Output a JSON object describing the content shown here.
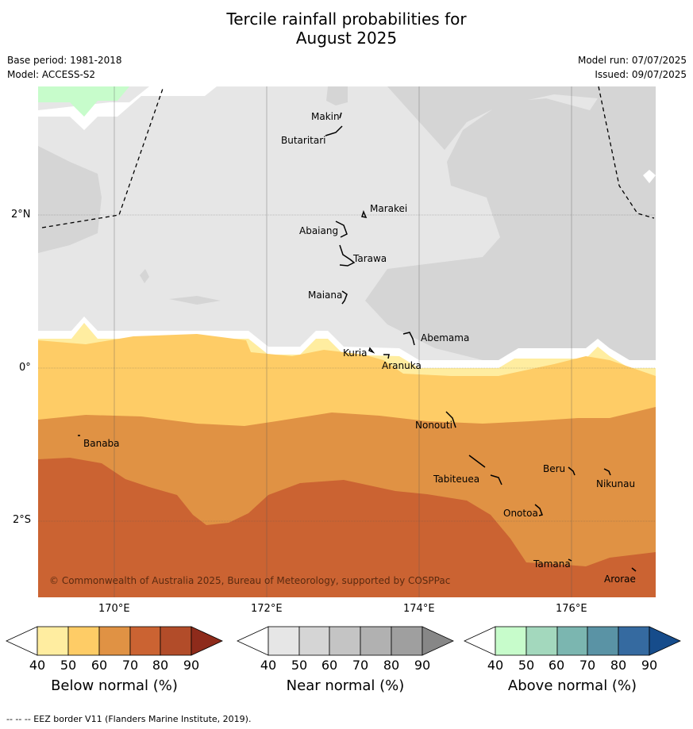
{
  "title_line1": "Tercile rainfall probabilities for",
  "title_line2": "August 2025",
  "meta_left": [
    "Base period: 1981-2018",
    "Model: ACCESS-S2"
  ],
  "meta_right": [
    "Model run: 07/07/2025",
    "Issued: 09/07/2025"
  ],
  "x_ticks": [
    "170°E",
    "172°E",
    "174°E",
    "176°E"
  ],
  "y_ticks": [
    "2°N",
    "0°",
    "2°S"
  ],
  "copyright": "© Commonwealth of Australia 2025, Bureau of Meteorology, supported by COSPPac",
  "footer": "--  --  -- EEZ border V11 (Flanders Marine Institute, 2019).",
  "islands": [
    "Makin",
    "Butaritari",
    "Marakei",
    "Abaiang",
    "Tarawa",
    "Maiana",
    "Abemama",
    "Kuria",
    "Aranuka",
    "Banaba",
    "Nonouti",
    "Tabiteuea",
    "Beru",
    "Nikunau",
    "Onotoa",
    "Tamana",
    "Arorae"
  ],
  "colorbars": [
    {
      "label": "Below normal (%)",
      "ticks": [
        "40",
        "50",
        "60",
        "70",
        "80",
        "90"
      ],
      "colors": [
        "#ffffff",
        "#ffeda0",
        "#fecc66",
        "#e09244",
        "#cb6332",
        "#b24c29",
        "#8e2b1b"
      ]
    },
    {
      "label": "Near normal (%)",
      "ticks": [
        "40",
        "50",
        "60",
        "70",
        "80",
        "90"
      ],
      "colors": [
        "#ffffff",
        "#e6e6e6",
        "#d5d5d5",
        "#c4c4c4",
        "#b1b1b1",
        "#9f9f9f",
        "#878787"
      ]
    },
    {
      "label": "Above normal (%)",
      "ticks": [
        "40",
        "50",
        "60",
        "70",
        "80",
        "90"
      ],
      "colors": [
        "#ffffff",
        "#c7fccb",
        "#a3d8bd",
        "#7bb6b0",
        "#5a93a5",
        "#356aa0",
        "#164c8b"
      ]
    }
  ],
  "colors": {
    "near_light": "#e6e6e6",
    "near_mid": "#d5d5d5",
    "below_50": "#ffeda0",
    "below_60": "#fecc66",
    "below_70": "#e09244",
    "below_80": "#cb6332",
    "above_50": "#c7fccb",
    "grid": "#555555",
    "copyright_text": "#5a2a10"
  }
}
